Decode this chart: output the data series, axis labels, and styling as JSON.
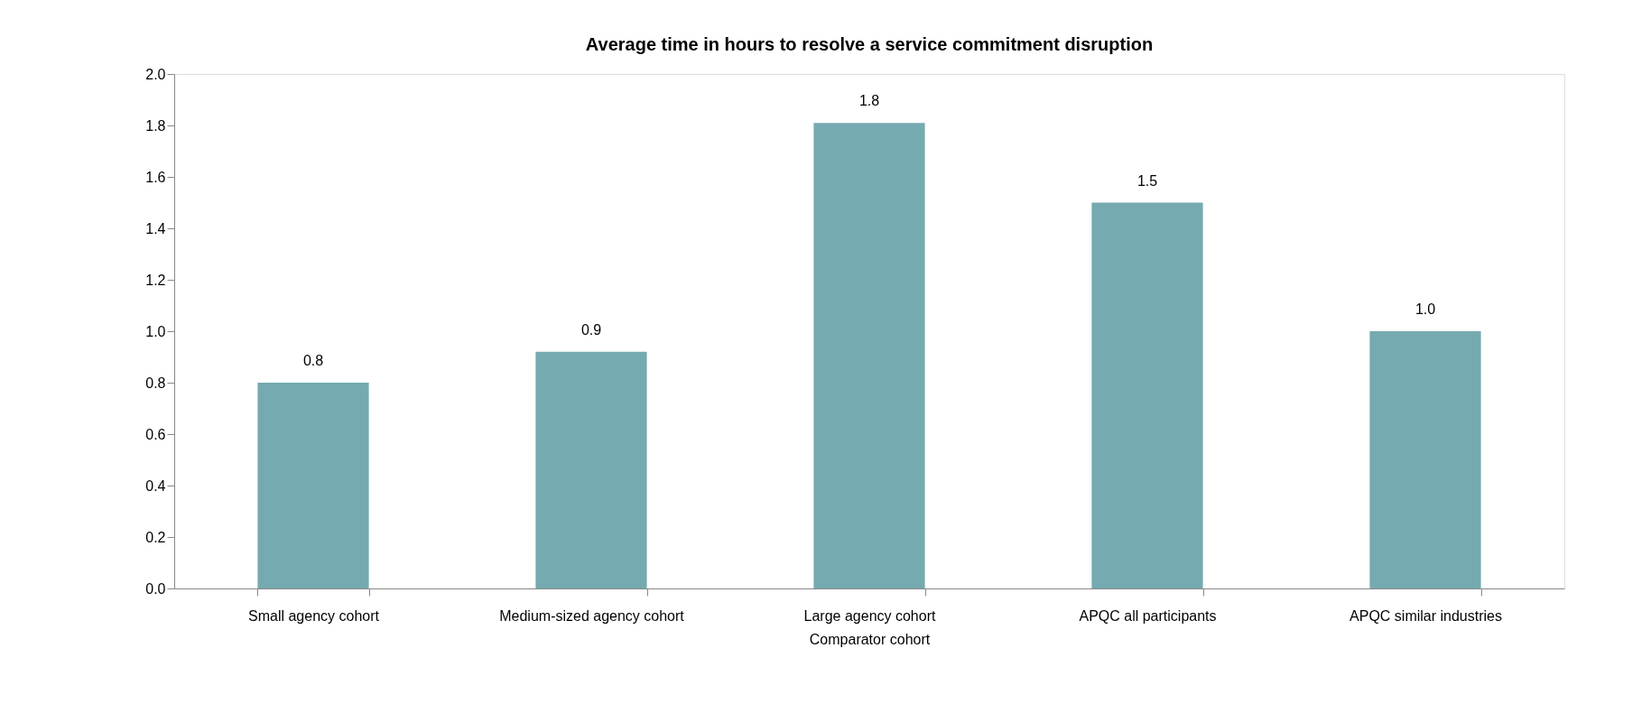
{
  "chart_data": {
    "type": "bar",
    "title": "Average time in hours to resolve a service commitment disruption",
    "xlabel": "Comparator cohort",
    "categories": [
      "Small agency cohort",
      "Medium-sized agency cohort",
      "Large agency cohort",
      "APQC all participants",
      "APQC similar industries"
    ],
    "values": [
      0.8,
      0.92,
      1.81,
      1.5,
      1.0
    ],
    "value_labels": [
      "0.8",
      "0.9",
      "1.8",
      "1.5",
      "1.0"
    ],
    "color": "#75aab0",
    "ylim": [
      0,
      2
    ],
    "yticks": [
      {
        "value": 0,
        "label": "0.0"
      },
      0.2,
      0.4,
      0.6,
      0.8,
      {
        "value": 1,
        "label": "1.0"
      },
      1.2,
      1.4,
      1.6,
      1.8,
      {
        "value": 2,
        "label": "2.0"
      }
    ],
    "grid": false
  }
}
